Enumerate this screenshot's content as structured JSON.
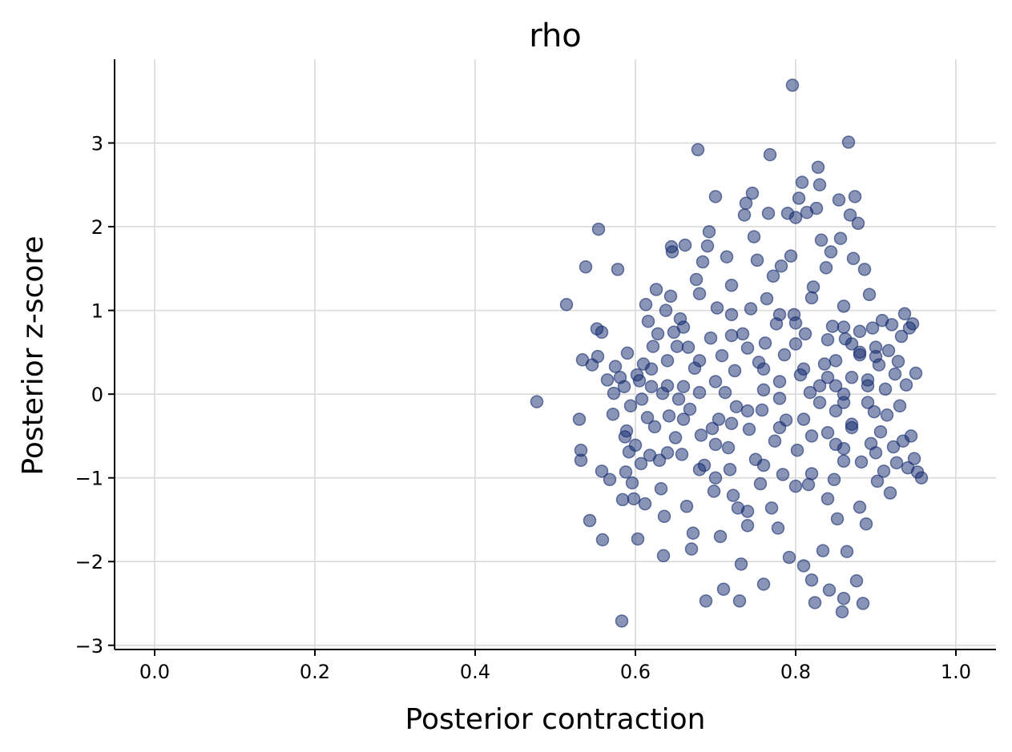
{
  "chart_data": {
    "type": "scatter",
    "title": "rho",
    "xlabel": "Posterior contraction",
    "ylabel": "Posterior z-score",
    "xlim": [
      -0.05,
      1.05
    ],
    "ylim": [
      -3.05,
      4.0
    ],
    "x_ticks": [
      0.0,
      0.2,
      0.4,
      0.6,
      0.8,
      1.0
    ],
    "x_tick_labels": [
      "0.0",
      "0.2",
      "0.4",
      "0.6",
      "0.8",
      "1.0"
    ],
    "y_ticks": [
      -3,
      -2,
      -1,
      0,
      1,
      2,
      3
    ],
    "y_tick_labels": [
      "−3",
      "−2",
      "−1",
      "0",
      "1",
      "2",
      "3"
    ],
    "grid": true,
    "point_color": "#132a6e",
    "point_opacity": 0.5,
    "series": [
      {
        "points": [
          [
            0.477,
            -0.09
          ],
          [
            0.514,
            1.07
          ],
          [
            0.53,
            -0.3
          ],
          [
            0.532,
            -0.67
          ],
          [
            0.532,
            -0.79
          ],
          [
            0.534,
            0.41
          ],
          [
            0.538,
            1.52
          ],
          [
            0.543,
            -1.51
          ],
          [
            0.546,
            0.35
          ],
          [
            0.552,
            0.78
          ],
          [
            0.554,
            1.97
          ],
          [
            0.553,
            0.45
          ],
          [
            0.558,
            0.74
          ],
          [
            0.558,
            -0.92
          ],
          [
            0.559,
            -1.74
          ],
          [
            0.565,
            0.17
          ],
          [
            0.568,
            -1.02
          ],
          [
            0.572,
            -0.24
          ],
          [
            0.573,
            0.01
          ],
          [
            0.575,
            0.33
          ],
          [
            0.578,
            1.49
          ],
          [
            0.581,
            0.2
          ],
          [
            0.583,
            -2.71
          ],
          [
            0.584,
            -1.26
          ],
          [
            0.586,
            0.09
          ],
          [
            0.587,
            -0.51
          ],
          [
            0.588,
            -0.93
          ],
          [
            0.589,
            -0.44
          ],
          [
            0.59,
            0.49
          ],
          [
            0.592,
            -0.69
          ],
          [
            0.594,
            -0.14
          ],
          [
            0.596,
            -1.06
          ],
          [
            0.598,
            -1.25
          ],
          [
            0.6,
            -0.61
          ],
          [
            0.602,
            0.23
          ],
          [
            0.603,
            -1.73
          ],
          [
            0.605,
            0.16
          ],
          [
            0.607,
            -0.83
          ],
          [
            0.608,
            -0.06
          ],
          [
            0.61,
            0.36
          ],
          [
            0.612,
            -1.31
          ],
          [
            0.613,
            1.07
          ],
          [
            0.615,
            -0.28
          ],
          [
            0.616,
            0.87
          ],
          [
            0.618,
            -0.73
          ],
          [
            0.62,
            0.09
          ],
          [
            0.622,
            0.57
          ],
          [
            0.624,
            -0.39
          ],
          [
            0.626,
            1.25
          ],
          [
            0.628,
            0.72
          ],
          [
            0.63,
            -0.79
          ],
          [
            0.632,
            -1.13
          ],
          [
            0.634,
            0.01
          ],
          [
            0.635,
            -1.93
          ],
          [
            0.636,
            -1.46
          ],
          [
            0.638,
            1.0
          ],
          [
            0.64,
            0.4
          ],
          [
            0.642,
            -0.26
          ],
          [
            0.644,
            1.17
          ],
          [
            0.645,
            1.76
          ],
          [
            0.646,
            1.7
          ],
          [
            0.648,
            0.74
          ],
          [
            0.65,
            -0.52
          ],
          [
            0.652,
            0.57
          ],
          [
            0.654,
            -0.06
          ],
          [
            0.656,
            0.9
          ],
          [
            0.658,
            -0.72
          ],
          [
            0.66,
            0.09
          ],
          [
            0.662,
            1.78
          ],
          [
            0.664,
            -1.34
          ],
          [
            0.666,
            0.56
          ],
          [
            0.668,
            -0.18
          ],
          [
            0.67,
            -1.85
          ],
          [
            0.672,
            -1.66
          ],
          [
            0.674,
            0.31
          ],
          [
            0.676,
            1.37
          ],
          [
            0.678,
            2.92
          ],
          [
            0.68,
            0.02
          ],
          [
            0.682,
            -0.49
          ],
          [
            0.684,
            1.58
          ],
          [
            0.686,
            -0.85
          ],
          [
            0.688,
            -2.47
          ],
          [
            0.69,
            1.77
          ],
          [
            0.692,
            1.94
          ],
          [
            0.694,
            0.67
          ],
          [
            0.696,
            -0.41
          ],
          [
            0.698,
            -1.16
          ],
          [
            0.7,
            2.36
          ],
          [
            0.702,
            1.03
          ],
          [
            0.704,
            -0.3
          ],
          [
            0.706,
            -1.7
          ],
          [
            0.708,
            0.46
          ],
          [
            0.71,
            -2.33
          ],
          [
            0.712,
            0.02
          ],
          [
            0.714,
            1.64
          ],
          [
            0.716,
            -0.64
          ],
          [
            0.718,
            -0.9
          ],
          [
            0.72,
            0.95
          ],
          [
            0.722,
            -1.21
          ],
          [
            0.724,
            0.28
          ],
          [
            0.726,
            -0.15
          ],
          [
            0.728,
            -1.36
          ],
          [
            0.73,
            -2.47
          ],
          [
            0.732,
            -2.03
          ],
          [
            0.734,
            0.72
          ],
          [
            0.736,
            2.14
          ],
          [
            0.738,
            2.28
          ],
          [
            0.74,
            -1.57
          ],
          [
            0.742,
            -0.42
          ],
          [
            0.744,
            1.02
          ],
          [
            0.746,
            2.4
          ],
          [
            0.748,
            1.88
          ],
          [
            0.75,
            -0.78
          ],
          [
            0.752,
            1.6
          ],
          [
            0.754,
            0.38
          ],
          [
            0.756,
            -1.07
          ],
          [
            0.758,
            -0.19
          ],
          [
            0.76,
            -2.27
          ],
          [
            0.762,
            0.61
          ],
          [
            0.764,
            1.14
          ],
          [
            0.766,
            2.16
          ],
          [
            0.768,
            2.86
          ],
          [
            0.77,
            -1.36
          ],
          [
            0.772,
            1.41
          ],
          [
            0.774,
            -0.56
          ],
          [
            0.776,
            0.84
          ],
          [
            0.778,
            -1.6
          ],
          [
            0.78,
            0.15
          ],
          [
            0.782,
            1.53
          ],
          [
            0.784,
            -0.96
          ],
          [
            0.786,
            0.47
          ],
          [
            0.788,
            -0.31
          ],
          [
            0.79,
            2.16
          ],
          [
            0.792,
            -1.95
          ],
          [
            0.794,
            1.65
          ],
          [
            0.796,
            3.69
          ],
          [
            0.798,
            0.95
          ],
          [
            0.8,
            2.11
          ],
          [
            0.802,
            -0.67
          ],
          [
            0.804,
            2.34
          ],
          [
            0.806,
            0.23
          ],
          [
            0.808,
            2.53
          ],
          [
            0.81,
            -2.05
          ],
          [
            0.812,
            0.72
          ],
          [
            0.814,
            2.17
          ],
          [
            0.816,
            -1.08
          ],
          [
            0.818,
            0.02
          ],
          [
            0.82,
            -2.22
          ],
          [
            0.822,
            1.28
          ],
          [
            0.824,
            -2.49
          ],
          [
            0.826,
            2.22
          ],
          [
            0.828,
            2.71
          ],
          [
            0.83,
            2.5
          ],
          [
            0.832,
            1.84
          ],
          [
            0.834,
            -1.87
          ],
          [
            0.836,
            0.36
          ],
          [
            0.838,
            1.51
          ],
          [
            0.84,
            -0.46
          ],
          [
            0.842,
            -2.34
          ],
          [
            0.844,
            1.7
          ],
          [
            0.846,
            0.81
          ],
          [
            0.848,
            -1.02
          ],
          [
            0.85,
            0.1
          ],
          [
            0.852,
            -1.49
          ],
          [
            0.854,
            2.32
          ],
          [
            0.856,
            1.86
          ],
          [
            0.858,
            -2.6
          ],
          [
            0.86,
            -2.44
          ],
          [
            0.862,
            0.66
          ],
          [
            0.864,
            -1.88
          ],
          [
            0.866,
            3.01
          ],
          [
            0.868,
            2.14
          ],
          [
            0.87,
            -0.36
          ],
          [
            0.872,
            1.62
          ],
          [
            0.874,
            2.36
          ],
          [
            0.876,
            -2.23
          ],
          [
            0.878,
            2.04
          ],
          [
            0.88,
            0.47
          ],
          [
            0.882,
            -0.81
          ],
          [
            0.884,
            -2.5
          ],
          [
            0.886,
            1.49
          ],
          [
            0.888,
            -1.55
          ],
          [
            0.89,
            0.17
          ],
          [
            0.892,
            1.19
          ],
          [
            0.894,
            -0.59
          ],
          [
            0.896,
            0.79
          ],
          [
            0.898,
            -0.21
          ],
          [
            0.9,
            0.56
          ],
          [
            0.902,
            -1.04
          ],
          [
            0.904,
            0.35
          ],
          [
            0.906,
            -0.45
          ],
          [
            0.908,
            0.88
          ],
          [
            0.91,
            -0.92
          ],
          [
            0.912,
            0.06
          ],
          [
            0.914,
            -0.25
          ],
          [
            0.916,
            0.52
          ],
          [
            0.918,
            -1.18
          ],
          [
            0.92,
            0.83
          ],
          [
            0.922,
            -0.63
          ],
          [
            0.924,
            0.24
          ],
          [
            0.926,
            -0.82
          ],
          [
            0.928,
            0.39
          ],
          [
            0.93,
            -0.14
          ],
          [
            0.932,
            0.69
          ],
          [
            0.934,
            -0.56
          ],
          [
            0.936,
            0.96
          ],
          [
            0.938,
            0.11
          ],
          [
            0.94,
            -0.88
          ],
          [
            0.942,
            0.79
          ],
          [
            0.944,
            -0.5
          ],
          [
            0.946,
            0.84
          ],
          [
            0.948,
            -0.77
          ],
          [
            0.95,
            0.25
          ],
          [
            0.952,
            -0.93
          ],
          [
            0.957,
            -1.0
          ],
          [
            0.64,
            0.1
          ],
          [
            0.66,
            -0.3
          ],
          [
            0.68,
            0.4
          ],
          [
            0.7,
            -0.6
          ],
          [
            0.72,
            0.7
          ],
          [
            0.74,
            -0.2
          ],
          [
            0.76,
            0.3
          ],
          [
            0.78,
            -0.4
          ],
          [
            0.8,
            0.6
          ],
          [
            0.82,
            -0.5
          ],
          [
            0.84,
            0.2
          ],
          [
            0.86,
            -0.1
          ],
          [
            0.88,
            0.5
          ],
          [
            0.9,
            -0.7
          ],
          [
            0.62,
            0.3
          ],
          [
            0.64,
            -0.7
          ],
          [
            0.66,
            0.8
          ],
          [
            0.68,
            -0.9
          ],
          [
            0.7,
            0.15
          ],
          [
            0.72,
            -0.35
          ],
          [
            0.74,
            0.55
          ],
          [
            0.76,
            -0.85
          ],
          [
            0.78,
            0.95
          ],
          [
            0.8,
            -1.1
          ],
          [
            0.82,
            1.15
          ],
          [
            0.84,
            -1.25
          ],
          [
            0.86,
            1.05
          ],
          [
            0.88,
            -1.35
          ],
          [
            0.9,
            0.45
          ],
          [
            0.68,
            1.2
          ],
          [
            0.7,
            -1.0
          ],
          [
            0.72,
            1.3
          ],
          [
            0.74,
            -1.4
          ],
          [
            0.76,
            0.05
          ],
          [
            0.78,
            -0.05
          ],
          [
            0.8,
            0.85
          ],
          [
            0.82,
            -0.95
          ],
          [
            0.84,
            0.65
          ],
          [
            0.86,
            -0.65
          ],
          [
            0.88,
            0.75
          ],
          [
            0.86,
            0.0
          ],
          [
            0.87,
            0.2
          ],
          [
            0.85,
            -0.2
          ],
          [
            0.87,
            -0.4
          ],
          [
            0.85,
            0.4
          ],
          [
            0.83,
            0.1
          ],
          [
            0.83,
            -0.1
          ],
          [
            0.87,
            0.6
          ],
          [
            0.85,
            -0.6
          ],
          [
            0.81,
            0.3
          ],
          [
            0.81,
            -0.3
          ],
          [
            0.89,
            0.1
          ],
          [
            0.89,
            -0.1
          ],
          [
            0.86,
            0.8
          ],
          [
            0.86,
            -0.8
          ]
        ]
      }
    ]
  }
}
